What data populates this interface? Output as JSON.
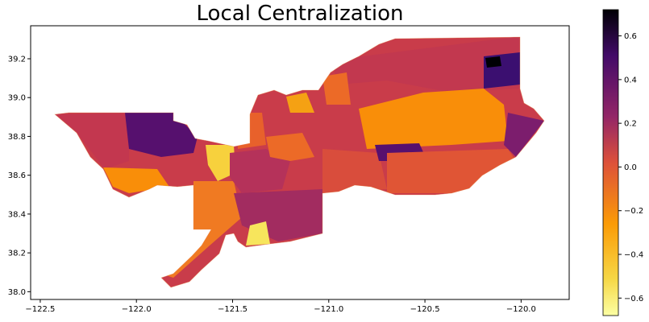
{
  "chart_data": {
    "type": "choropleth",
    "title": "Local Centralization",
    "xlabel": "",
    "ylabel": "",
    "x_ticks": [
      -122.5,
      -122.0,
      -121.5,
      -121.0,
      -120.5,
      -120.0
    ],
    "y_ticks": [
      38.0,
      38.2,
      38.4,
      38.6,
      38.8,
      39.0,
      39.2
    ],
    "xlim": [
      -122.55,
      -119.75
    ],
    "ylim": [
      37.96,
      39.37
    ],
    "colorbar": {
      "colormap": "inferno_r",
      "range": [
        -0.68,
        0.72
      ],
      "ticks": [
        0.6,
        0.4,
        0.2,
        0.0,
        -0.2,
        -0.4,
        -0.6
      ]
    }
  }
}
